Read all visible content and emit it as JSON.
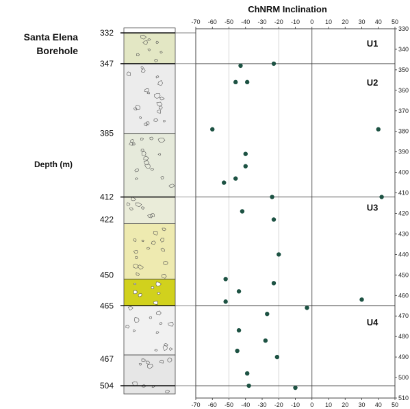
{
  "chart_data": {
    "type": "scatter",
    "title": "ChNRM Inclination",
    "borehole_title": [
      "Santa Elena",
      "Borehole"
    ],
    "ylabel": "Depth (m)",
    "x_ticks": [
      -70,
      -60,
      -50,
      -40,
      -30,
      -20,
      -10,
      0,
      10,
      20,
      30,
      40,
      50
    ],
    "xlim": [
      -70,
      50
    ],
    "y_ticks": [
      330,
      340,
      350,
      360,
      370,
      380,
      390,
      400,
      410,
      420,
      430,
      440,
      450,
      460,
      470,
      480,
      490,
      500,
      510
    ],
    "ylim": [
      330,
      510
    ],
    "grid_x": [
      -50,
      -20
    ],
    "units": [
      {
        "label": "U1",
        "depth": 337
      },
      {
        "label": "U2",
        "depth": 356
      },
      {
        "label": "U3",
        "depth": 417
      },
      {
        "label": "U4",
        "depth": 473
      }
    ],
    "boundaries": [
      332,
      347,
      412,
      465,
      504
    ],
    "depth_labels": [
      {
        "text": "332",
        "depth": 332
      },
      {
        "text": "347",
        "depth": 347
      },
      {
        "text": "385",
        "depth": 381
      },
      {
        "text": "412",
        "depth": 412
      },
      {
        "text": "422",
        "depth": 423
      },
      {
        "text": "450",
        "depth": 450
      },
      {
        "text": "465",
        "depth": 465
      },
      {
        "text": "467",
        "depth": 491
      },
      {
        "text": "504",
        "depth": 504
      }
    ],
    "points": [
      {
        "x": -23,
        "y": 347
      },
      {
        "x": -43,
        "y": 348
      },
      {
        "x": -46,
        "y": 356
      },
      {
        "x": -39,
        "y": 356
      },
      {
        "x": -60,
        "y": 379
      },
      {
        "x": 40,
        "y": 379
      },
      {
        "x": -40,
        "y": 391
      },
      {
        "x": -40,
        "y": 397
      },
      {
        "x": -46,
        "y": 403
      },
      {
        "x": -53,
        "y": 405
      },
      {
        "x": -24,
        "y": 412
      },
      {
        "x": 42,
        "y": 412
      },
      {
        "x": -42,
        "y": 419
      },
      {
        "x": -23,
        "y": 423
      },
      {
        "x": -20,
        "y": 440
      },
      {
        "x": -52,
        "y": 452
      },
      {
        "x": -23,
        "y": 454
      },
      {
        "x": -44,
        "y": 458
      },
      {
        "x": -52,
        "y": 463
      },
      {
        "x": 30,
        "y": 462
      },
      {
        "x": -3,
        "y": 466
      },
      {
        "x": -27,
        "y": 469
      },
      {
        "x": -44,
        "y": 477
      },
      {
        "x": -28,
        "y": 482
      },
      {
        "x": -45,
        "y": 487
      },
      {
        "x": -21,
        "y": 490
      },
      {
        "x": -39,
        "y": 498
      },
      {
        "x": -38,
        "y": 504
      },
      {
        "x": -10,
        "y": 505
      }
    ],
    "point_color": "#1d5243"
  },
  "log_colors": {
    "u1": "#e3e7c4",
    "u2a": "#ececec",
    "u2b": "#e6eadb",
    "u3a": "#eaecd9",
    "u3b": "#eeeab0",
    "u3c": "#d1d11d",
    "u4a": "#f1f1f1",
    "u4b": "#e6e6e6"
  }
}
